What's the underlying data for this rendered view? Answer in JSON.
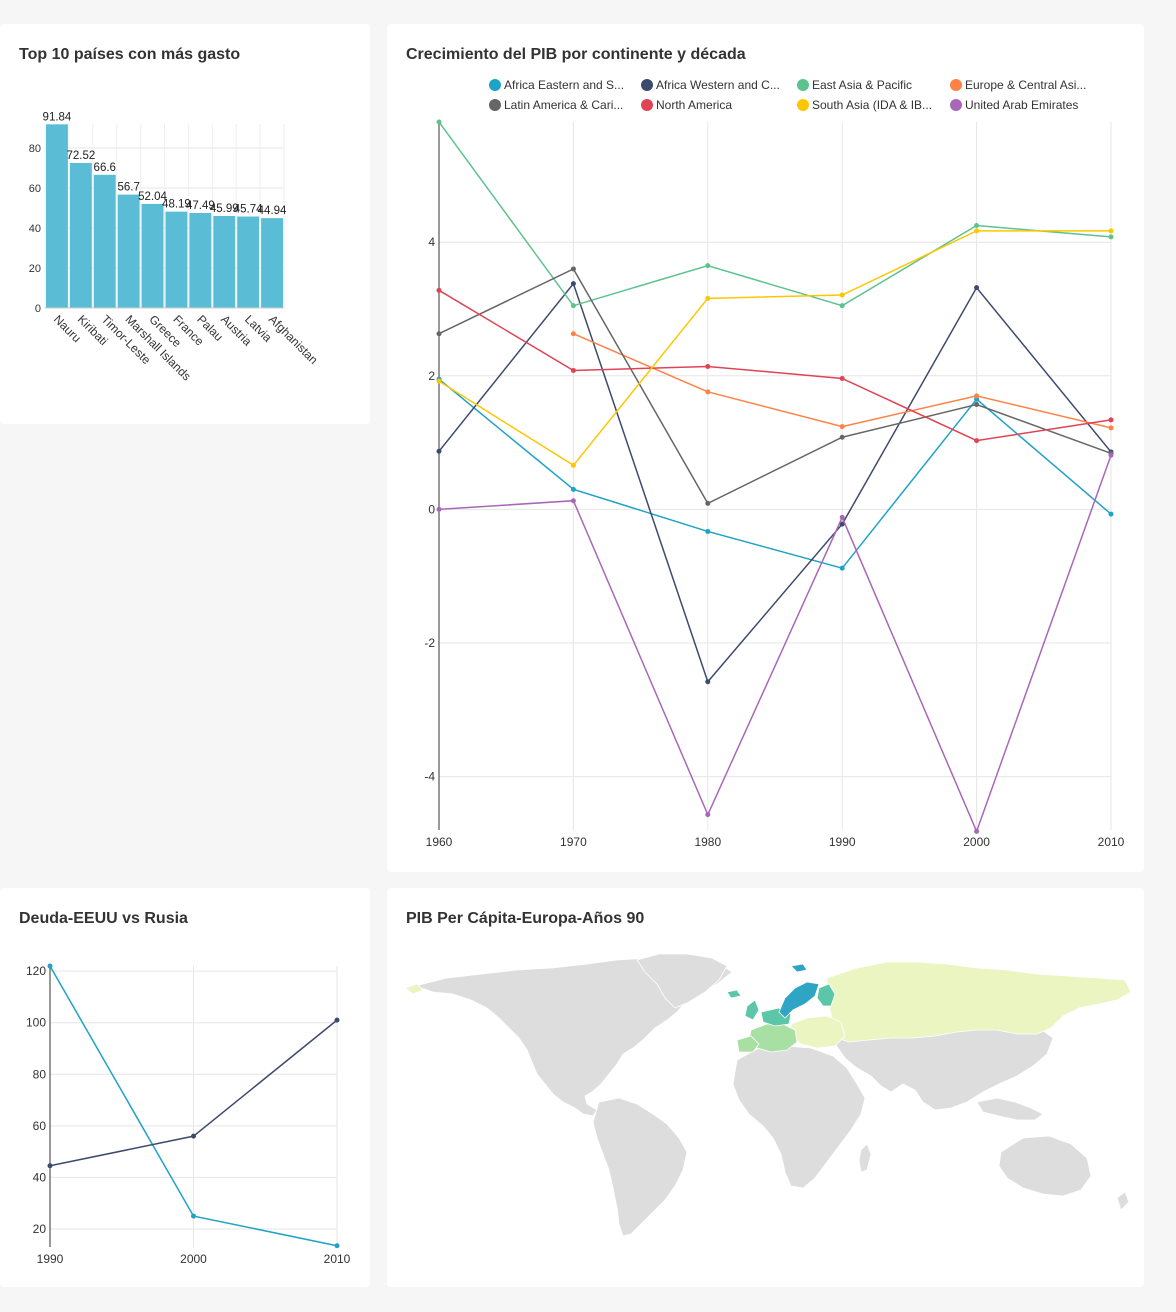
{
  "cards": {
    "top10": {
      "title": "Top 10 países con más gasto"
    },
    "gdp_growth": {
      "title": "Crecimiento del PIB por continente y década"
    },
    "debt": {
      "title": "Deuda-EEUU vs Rusia"
    },
    "map": {
      "title": "PIB Per Cápita-Europa-Años 90"
    }
  },
  "chart_data": [
    {
      "id": "top10",
      "type": "bar",
      "title": "Top 10 países con más gasto",
      "categories": [
        "Nauru",
        "Kiribati",
        "Timor-Leste",
        "Marshall Islands",
        "Greece",
        "France",
        "Palau",
        "Austria",
        "Latvia",
        "Afghanistan"
      ],
      "values": [
        91.84,
        72.52,
        66.6,
        56.7,
        52.04,
        48.19,
        47.49,
        45.99,
        45.74,
        44.94
      ],
      "value_labels": [
        "91.84",
        "72.52",
        "66.6",
        "56.7",
        "52.04",
        "48.19",
        "47.49",
        "45.99",
        "45.74",
        "44.94"
      ],
      "ylim": [
        0,
        92
      ],
      "yticks": [
        "0",
        "20",
        "40",
        "60",
        "80"
      ],
      "color": "#5bbcd6",
      "grid": true
    },
    {
      "id": "gdp_growth",
      "type": "line",
      "title": "Crecimiento del PIB por continente y década",
      "x": [
        1960,
        1970,
        1980,
        1990,
        2000,
        2010
      ],
      "xticks": [
        "1960",
        "1970",
        "1980",
        "1990",
        "2000",
        "2010"
      ],
      "yticks": [
        "-4",
        "-2",
        "0",
        "2",
        "4"
      ],
      "ylim": [
        -4.8,
        5.8
      ],
      "grid": true,
      "legend_position": "top",
      "series": [
        {
          "name": "Africa Eastern and S...",
          "color": "#1fa2c5",
          "values": [
            1.95,
            0.3,
            -0.33,
            -0.88,
            1.65,
            -0.07
          ]
        },
        {
          "name": "Africa Western and C...",
          "color": "#3c4a6e",
          "values": [
            0.87,
            3.38,
            -2.58,
            -0.22,
            3.32,
            0.86
          ]
        },
        {
          "name": "East Asia & Pacific",
          "color": "#5cc38d",
          "values": [
            5.8,
            3.05,
            3.65,
            3.05,
            4.25,
            4.08
          ]
        },
        {
          "name": "Europe & Central Asi...",
          "color": "#ff8245",
          "values": [
            null,
            2.63,
            1.76,
            1.24,
            1.7,
            1.22
          ]
        },
        {
          "name": "Latin America & Cari...",
          "color": "#666666",
          "values": [
            2.63,
            3.6,
            0.09,
            1.08,
            1.57,
            0.84
          ]
        },
        {
          "name": "North America",
          "color": "#e04355",
          "values": [
            3.28,
            2.08,
            2.14,
            1.96,
            1.03,
            1.34
          ]
        },
        {
          "name": "South Asia (IDA & IB...",
          "color": "#fcc700",
          "values": [
            1.92,
            0.66,
            3.16,
            3.21,
            4.17,
            4.17
          ]
        },
        {
          "name": "United Arab Emirates",
          "color": "#a868b7",
          "values": [
            0.0,
            0.13,
            -4.57,
            -0.12,
            -4.82,
            0.81
          ]
        }
      ]
    },
    {
      "id": "debt",
      "type": "line",
      "title": "Deuda-EEUU vs Rusia",
      "x": [
        1990,
        2000,
        2010
      ],
      "xticks": [
        "1990",
        "2000",
        "2010"
      ],
      "yticks": [
        "20",
        "40",
        "60",
        "80",
        "100",
        "120"
      ],
      "ylim": [
        13,
        122
      ],
      "grid": true,
      "series": [
        {
          "color": "#1fa2c5",
          "values": [
            122,
            25,
            13.5
          ]
        },
        {
          "color": "#3c4a6e",
          "values": [
            44.5,
            56,
            101
          ]
        }
      ]
    }
  ],
  "map": {
    "type": "choropleth",
    "colors": {
      "no_data": "#dddddd",
      "low": "#ebf5c2",
      "mid": "#a8e0a4",
      "high": "#5cc6a8",
      "top": "#2ea5c5"
    }
  }
}
